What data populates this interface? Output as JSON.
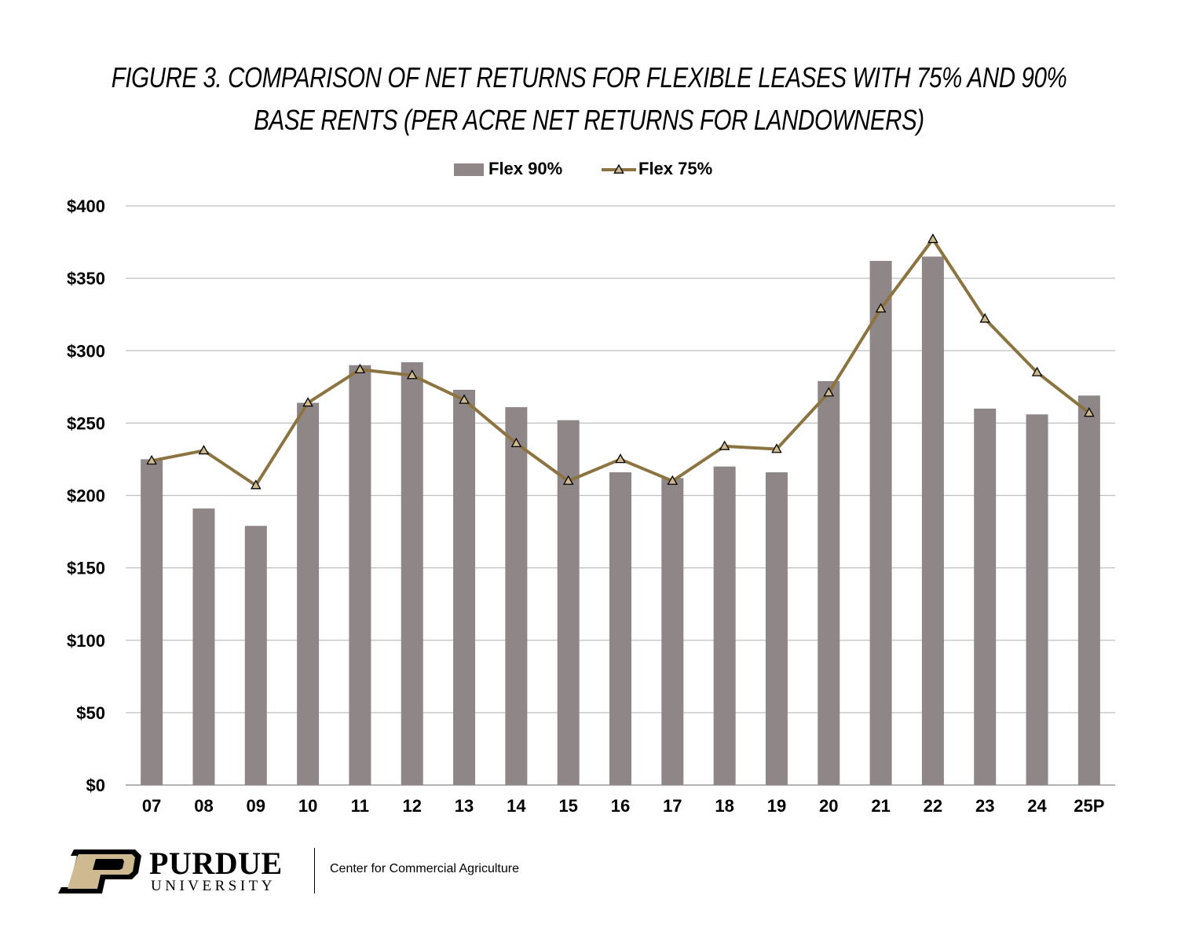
{
  "chart_data": {
    "type": "bar",
    "title_lines": [
      "FIGURE 3. COMPARISON OF NET RETURNS FOR FLEXIBLE LEASES WITH 75% AND 90%",
      "BASE RENTS (PER ACRE NET RETURNS FOR LANDOWNERS)"
    ],
    "categories": [
      "07",
      "08",
      "09",
      "10",
      "11",
      "12",
      "13",
      "14",
      "15",
      "16",
      "17",
      "18",
      "19",
      "20",
      "21",
      "22",
      "23",
      "24",
      "25P"
    ],
    "series": [
      {
        "name": "Flex 90%",
        "kind": "bar",
        "color": "#8f8787",
        "values": [
          225,
          191,
          179,
          264,
          290,
          292,
          273,
          261,
          252,
          216,
          212,
          220,
          216,
          279,
          362,
          365,
          260,
          256,
          269
        ]
      },
      {
        "name": "Flex 75%",
        "kind": "line",
        "marker": "triangle",
        "color": "#8b7440",
        "marker_fill": "#cfb991",
        "values": [
          224,
          231,
          207,
          264,
          287,
          283,
          266,
          236,
          210,
          225,
          210,
          234,
          232,
          271,
          329,
          377,
          322,
          285,
          257
        ]
      }
    ],
    "y_ticks": [
      "$0",
      "$50",
      "$100",
      "$150",
      "$200",
      "$250",
      "$300",
      "$350",
      "$400"
    ],
    "ylim": [
      0,
      400
    ],
    "y_step": 50,
    "grid": true,
    "legend_position": "top-center"
  },
  "footer": {
    "logo_letter": "P",
    "logo_name": "PURDUE",
    "logo_sub": "UNIVERSITY",
    "center_name": "Center for Commercial Agriculture"
  },
  "colors": {
    "gold": "#cfb991",
    "black": "#000000",
    "grid": "#bfbfbf"
  }
}
